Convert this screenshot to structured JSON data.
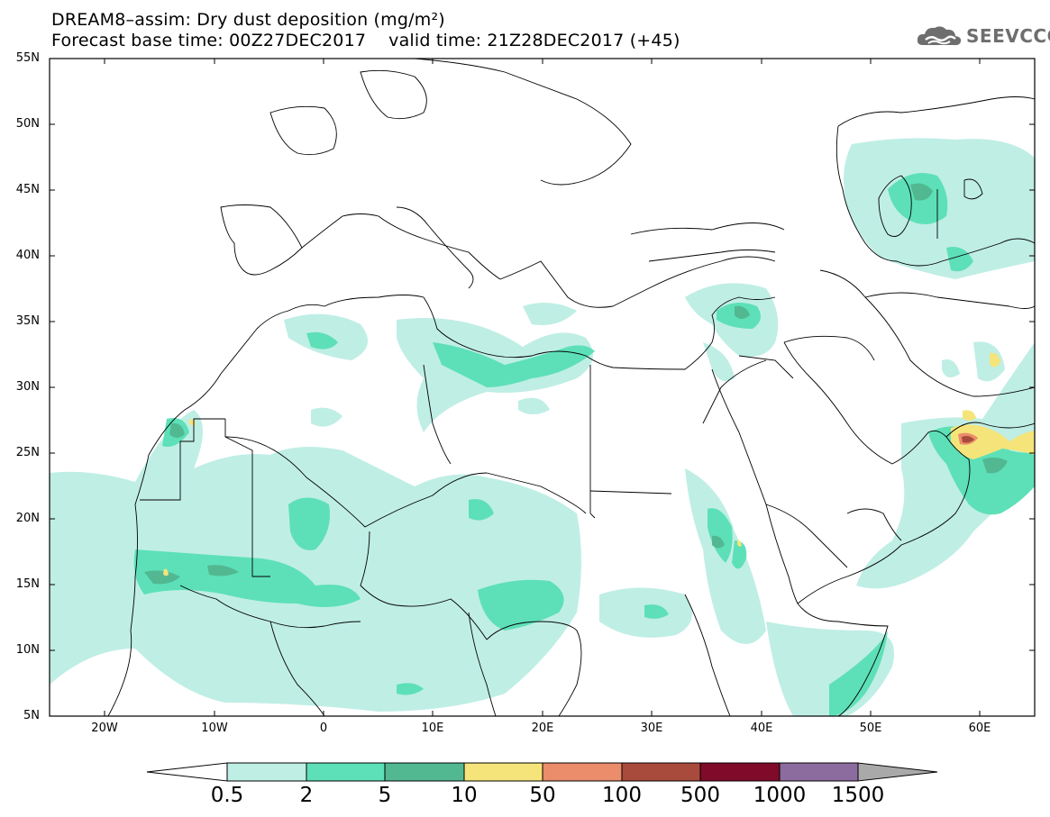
{
  "title": {
    "line1": "DREAM8–assim: Dry dust deposition (mg/m²)",
    "line2": "Forecast base time: 00Z27DEC2017    valid time: 21Z28DEC2017 (+45)"
  },
  "logo": {
    "text": "SEEVCCC",
    "icon": "cloud-icon"
  },
  "axes": {
    "y_labels": [
      "55N",
      "50N",
      "45N",
      "40N",
      "35N",
      "30N",
      "25N",
      "20N",
      "15N",
      "10N",
      "5N"
    ],
    "x_labels": [
      "20W",
      "10W",
      "0",
      "10E",
      "20E",
      "30E",
      "40E",
      "50E",
      "60E"
    ]
  },
  "colorbar": {
    "labels": [
      "0.5",
      "2",
      "5",
      "10",
      "50",
      "100",
      "500",
      "1000",
      "1500"
    ],
    "colors": [
      "#bfeee5",
      "#5de0b7",
      "#52b892",
      "#f5e47a",
      "#eb8c6a",
      "#a84a3c",
      "#7f0a2a",
      "#8c6b9e",
      "#a9a9a9"
    ]
  },
  "colors": {
    "level1": "#bfeee5",
    "level2": "#5de0b7",
    "level3": "#52b892",
    "level4": "#f5e47a",
    "level5": "#eb8c6a",
    "level6": "#a84a3c"
  }
}
